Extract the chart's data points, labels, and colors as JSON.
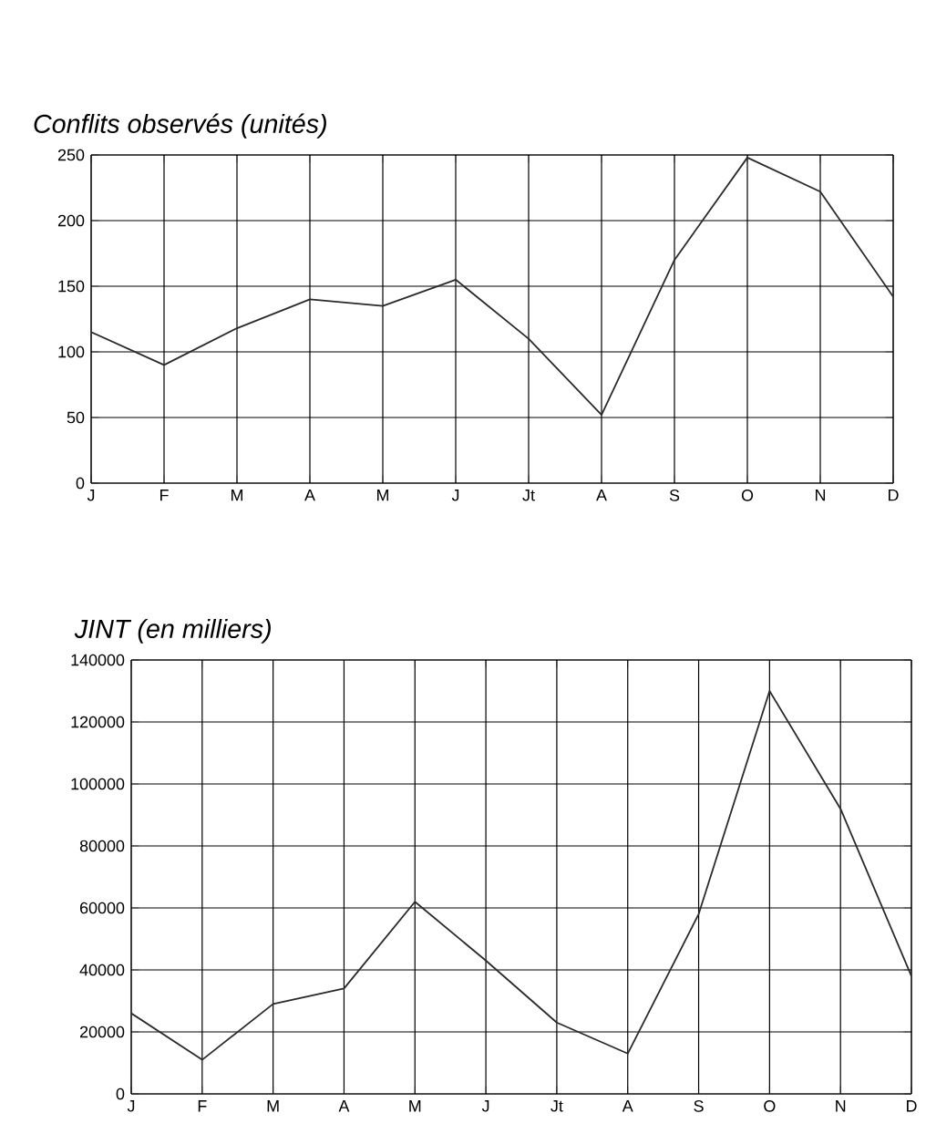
{
  "chart_data": [
    {
      "type": "line",
      "title": "Conflits observés (unités)",
      "categories": [
        "J",
        "F",
        "M",
        "A",
        "M",
        "J",
        "Jt",
        "A",
        "S",
        "O",
        "N",
        "D"
      ],
      "values": [
        115,
        90,
        118,
        140,
        135,
        155,
        110,
        52,
        170,
        248,
        222,
        142
      ],
      "color": "#2a2a2a",
      "ylim": [
        0,
        250
      ],
      "yticks": [
        0,
        50,
        100,
        150,
        200,
        250
      ],
      "grid": true
    },
    {
      "type": "line",
      "title": "JINT (en milliers)",
      "categories": [
        "J",
        "F",
        "M",
        "A",
        "M",
        "J",
        "Jt",
        "A",
        "S",
        "O",
        "N",
        "D"
      ],
      "values": [
        26000,
        11000,
        29000,
        34000,
        62000,
        43000,
        23000,
        13000,
        58000,
        130000,
        92000,
        38000
      ],
      "color": "#2a2a2a",
      "ylim": [
        0,
        140000
      ],
      "yticks": [
        0,
        20000,
        40000,
        60000,
        80000,
        100000,
        120000,
        140000
      ],
      "grid": true
    }
  ]
}
